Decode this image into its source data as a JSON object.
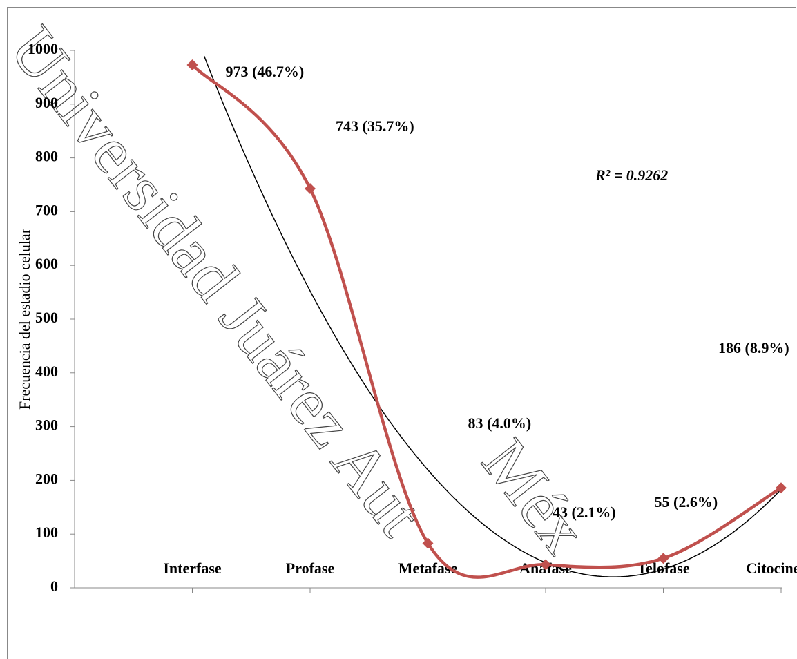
{
  "chart_data": {
    "type": "line",
    "y_label": "Frecuencia del estadio  celular",
    "categories": [
      "Interfase",
      "Profase",
      "Metafase",
      "Anafase",
      "Telofase",
      "Citocinesis"
    ],
    "values": [
      973,
      743,
      83,
      43,
      55,
      186
    ],
    "value_labels": [
      "973 (46.7%)",
      "743 (35.7%)",
      "83 (4.0%)",
      "43 (2.1%)",
      "55 (2.6%)",
      "186 (8.9%)"
    ],
    "color": "#c0504d",
    "smooth": true,
    "trendline": {
      "type": "polynomial",
      "color": "#000000",
      "annotation": "R² = 0.9262"
    },
    "ylim": [
      0,
      1000
    ],
    "yticks": [
      0,
      100,
      200,
      300,
      400,
      500,
      600,
      700,
      800,
      900,
      1000
    ],
    "grid": false,
    "watermark": [
      "Universidad Juárez Aut",
      "Méx"
    ]
  }
}
